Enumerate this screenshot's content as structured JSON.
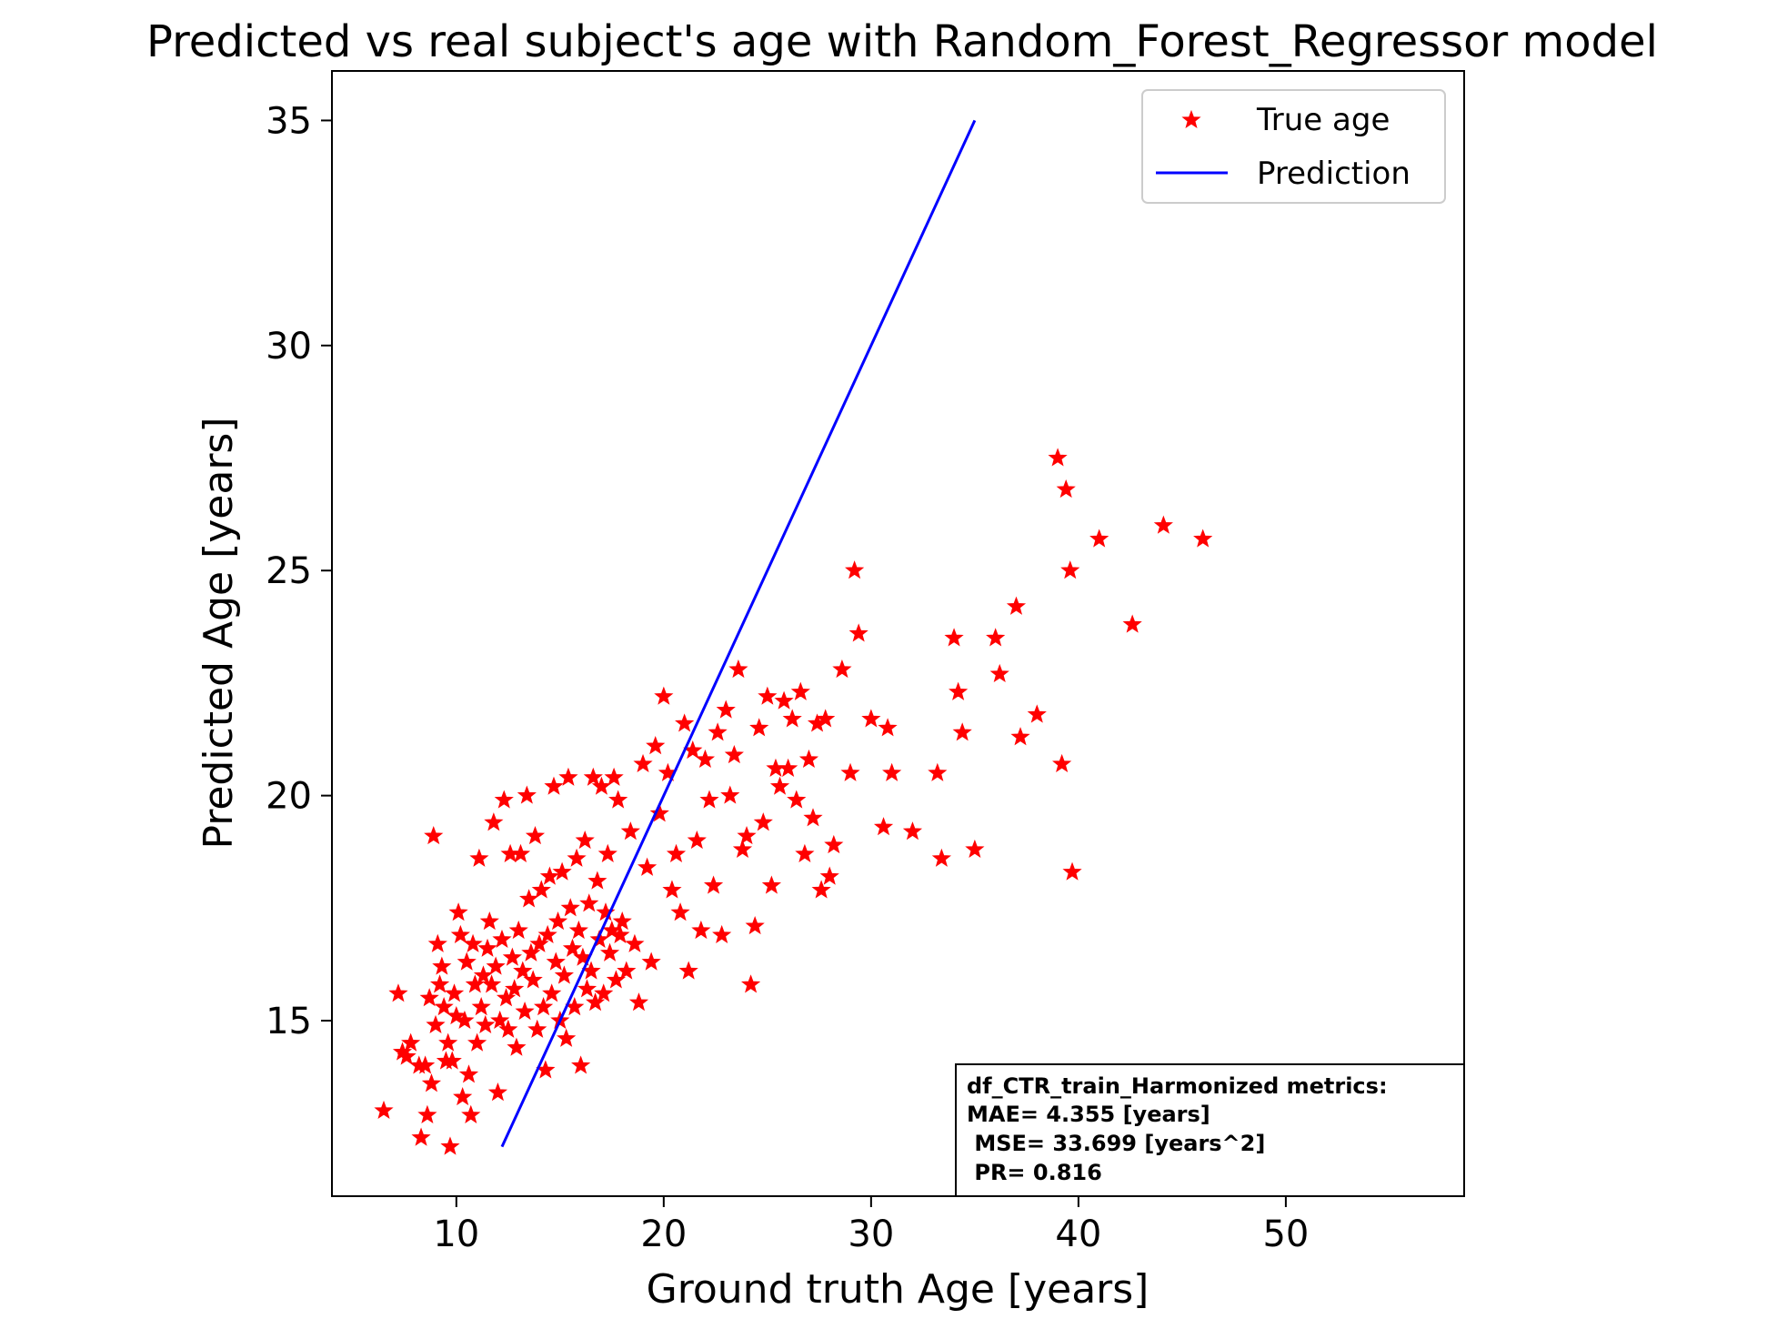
{
  "chart_data": {
    "type": "scatter",
    "title": "Predicted vs real subject's age with Random_Forest_Regressor model",
    "xlabel": "Ground truth Age [years]",
    "ylabel": "Predicted Age [years]",
    "xlim": [
      4.0,
      58.6
    ],
    "ylim": [
      11.1,
      36.1
    ],
    "xticks": [
      10,
      20,
      30,
      40,
      50
    ],
    "yticks": [
      15,
      20,
      25,
      30,
      35
    ],
    "legend_position": "top-right",
    "grid": false,
    "colors": {
      "points": "#ff0000",
      "line": "#0000ff"
    },
    "series": [
      {
        "name": "True age",
        "kind": "scatter",
        "marker": "star",
        "points": [
          [
            6.5,
            13.0
          ],
          [
            7.2,
            15.6
          ],
          [
            7.4,
            14.3
          ],
          [
            7.6,
            14.2
          ],
          [
            7.8,
            14.5
          ],
          [
            8.2,
            14.0
          ],
          [
            8.3,
            12.4
          ],
          [
            8.5,
            14.0
          ],
          [
            8.6,
            12.9
          ],
          [
            8.7,
            15.5
          ],
          [
            8.8,
            13.6
          ],
          [
            8.9,
            19.1
          ],
          [
            9.0,
            14.9
          ],
          [
            9.1,
            16.7
          ],
          [
            9.2,
            15.8
          ],
          [
            9.3,
            16.2
          ],
          [
            9.4,
            15.3
          ],
          [
            9.5,
            14.1
          ],
          [
            9.6,
            14.5
          ],
          [
            9.7,
            12.2
          ],
          [
            9.8,
            14.1
          ],
          [
            9.9,
            15.6
          ],
          [
            10.0,
            15.1
          ],
          [
            10.1,
            17.4
          ],
          [
            10.2,
            16.9
          ],
          [
            10.3,
            13.3
          ],
          [
            10.4,
            15.0
          ],
          [
            10.5,
            16.3
          ],
          [
            10.6,
            13.8
          ],
          [
            10.7,
            12.9
          ],
          [
            10.8,
            16.7
          ],
          [
            10.9,
            15.8
          ],
          [
            11.0,
            14.5
          ],
          [
            11.1,
            18.6
          ],
          [
            11.2,
            15.3
          ],
          [
            11.3,
            16.0
          ],
          [
            11.4,
            14.9
          ],
          [
            11.5,
            16.6
          ],
          [
            11.6,
            17.2
          ],
          [
            11.7,
            15.8
          ],
          [
            11.8,
            19.4
          ],
          [
            11.9,
            16.2
          ],
          [
            12.0,
            13.4
          ],
          [
            12.1,
            15.0
          ],
          [
            12.2,
            16.8
          ],
          [
            12.3,
            19.9
          ],
          [
            12.4,
            15.5
          ],
          [
            12.5,
            14.8
          ],
          [
            12.6,
            18.7
          ],
          [
            12.7,
            16.4
          ],
          [
            12.8,
            15.7
          ],
          [
            12.9,
            14.4
          ],
          [
            13.0,
            17.0
          ],
          [
            13.1,
            18.7
          ],
          [
            13.2,
            16.1
          ],
          [
            13.3,
            15.2
          ],
          [
            13.4,
            20.0
          ],
          [
            13.5,
            17.7
          ],
          [
            13.6,
            16.5
          ],
          [
            13.7,
            15.9
          ],
          [
            13.8,
            19.1
          ],
          [
            13.9,
            14.8
          ],
          [
            14.0,
            16.7
          ],
          [
            14.1,
            17.9
          ],
          [
            14.2,
            15.3
          ],
          [
            14.3,
            13.9
          ],
          [
            14.4,
            16.9
          ],
          [
            14.5,
            18.2
          ],
          [
            14.6,
            15.6
          ],
          [
            14.7,
            20.2
          ],
          [
            14.8,
            16.3
          ],
          [
            14.9,
            17.2
          ],
          [
            15.0,
            15.0
          ],
          [
            15.1,
            18.3
          ],
          [
            15.2,
            16.0
          ],
          [
            15.3,
            14.6
          ],
          [
            15.4,
            20.4
          ],
          [
            15.5,
            17.5
          ],
          [
            15.6,
            16.6
          ],
          [
            15.7,
            15.3
          ],
          [
            15.8,
            18.6
          ],
          [
            15.9,
            17.0
          ],
          [
            16.0,
            14.0
          ],
          [
            16.1,
            16.4
          ],
          [
            16.2,
            19.0
          ],
          [
            16.3,
            15.7
          ],
          [
            16.4,
            17.6
          ],
          [
            16.5,
            16.1
          ],
          [
            16.6,
            20.4
          ],
          [
            16.7,
            15.4
          ],
          [
            16.8,
            18.1
          ],
          [
            16.9,
            16.8
          ],
          [
            17.0,
            20.2
          ],
          [
            17.1,
            15.6
          ],
          [
            17.2,
            17.4
          ],
          [
            17.3,
            18.7
          ],
          [
            17.4,
            16.5
          ],
          [
            17.5,
            17.0
          ],
          [
            17.6,
            20.4
          ],
          [
            17.7,
            15.9
          ],
          [
            17.8,
            19.9
          ],
          [
            17.9,
            16.9
          ],
          [
            18.0,
            17.2
          ],
          [
            18.2,
            16.1
          ],
          [
            18.4,
            19.2
          ],
          [
            18.6,
            16.7
          ],
          [
            18.8,
            15.4
          ],
          [
            19.0,
            20.7
          ],
          [
            19.2,
            18.4
          ],
          [
            19.4,
            16.3
          ],
          [
            19.6,
            21.1
          ],
          [
            19.8,
            19.6
          ],
          [
            20.0,
            22.2
          ],
          [
            20.2,
            20.5
          ],
          [
            20.4,
            17.9
          ],
          [
            20.6,
            18.7
          ],
          [
            20.8,
            17.4
          ],
          [
            21.0,
            21.6
          ],
          [
            21.2,
            16.1
          ],
          [
            21.4,
            21.0
          ],
          [
            21.6,
            19.0
          ],
          [
            21.8,
            17.0
          ],
          [
            22.0,
            20.8
          ],
          [
            22.2,
            19.9
          ],
          [
            22.4,
            18.0
          ],
          [
            22.6,
            21.4
          ],
          [
            22.8,
            16.9
          ],
          [
            23.0,
            21.9
          ],
          [
            23.2,
            20.0
          ],
          [
            23.4,
            20.9
          ],
          [
            23.6,
            22.8
          ],
          [
            23.8,
            18.8
          ],
          [
            24.0,
            19.1
          ],
          [
            24.2,
            15.8
          ],
          [
            24.4,
            17.1
          ],
          [
            24.6,
            21.5
          ],
          [
            24.8,
            19.4
          ],
          [
            25.0,
            22.2
          ],
          [
            25.2,
            18.0
          ],
          [
            25.4,
            20.6
          ],
          [
            25.6,
            20.2
          ],
          [
            25.8,
            22.1
          ],
          [
            26.0,
            20.6
          ],
          [
            26.2,
            21.7
          ],
          [
            26.4,
            19.9
          ],
          [
            26.6,
            22.3
          ],
          [
            26.8,
            18.7
          ],
          [
            27.0,
            20.8
          ],
          [
            27.2,
            19.5
          ],
          [
            27.4,
            21.6
          ],
          [
            27.6,
            17.9
          ],
          [
            27.8,
            21.7
          ],
          [
            28.0,
            18.2
          ],
          [
            28.2,
            18.9
          ],
          [
            28.6,
            22.8
          ],
          [
            29.0,
            20.5
          ],
          [
            29.2,
            25.0
          ],
          [
            29.4,
            23.6
          ],
          [
            30.0,
            21.7
          ],
          [
            30.6,
            19.3
          ],
          [
            30.8,
            21.5
          ],
          [
            31.0,
            20.5
          ],
          [
            32.0,
            19.2
          ],
          [
            33.2,
            20.5
          ],
          [
            33.4,
            18.6
          ],
          [
            34.0,
            23.5
          ],
          [
            34.2,
            22.3
          ],
          [
            34.4,
            21.4
          ],
          [
            35.0,
            18.8
          ],
          [
            36.0,
            23.5
          ],
          [
            36.2,
            22.7
          ],
          [
            37.0,
            24.2
          ],
          [
            37.2,
            21.3
          ],
          [
            38.0,
            21.8
          ],
          [
            39.0,
            27.5
          ],
          [
            39.2,
            20.7
          ],
          [
            39.4,
            26.8
          ],
          [
            39.6,
            25.0
          ],
          [
            39.7,
            18.3
          ],
          [
            41.0,
            25.7
          ],
          [
            42.6,
            23.8
          ],
          [
            44.1,
            26.0
          ],
          [
            46.0,
            25.7
          ]
        ]
      },
      {
        "name": "Prediction",
        "kind": "line",
        "points": [
          [
            12.2,
            12.2
          ],
          [
            35.0,
            35.0
          ]
        ]
      }
    ],
    "annotation": {
      "lines": [
        "df_CTR_train_Harmonized metrics:",
        "MAE= 4.355 [years]",
        " MSE= 33.699 [years^2]",
        " PR= 0.816"
      ]
    }
  }
}
